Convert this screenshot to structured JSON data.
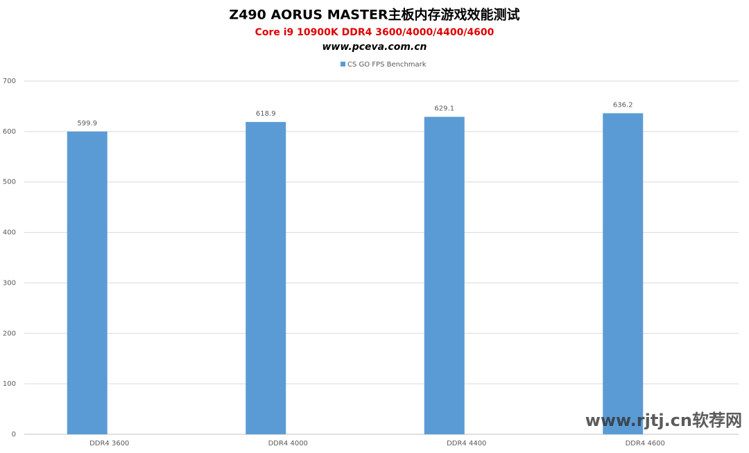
{
  "chart_data": {
    "type": "bar",
    "title": "Z490 AORUS MASTER主板内存游戏效能测试",
    "subtitle": "Core i9 10900K DDR4 3600/4000/4400/4600",
    "source": "www.pceva.com.cn",
    "categories": [
      "DDR4 3600",
      "DDR4 4000",
      "DDR4 4400",
      "DDR4 4600"
    ],
    "series": [
      {
        "name": "CS GO FPS Benchmark",
        "color": "#5b9bd5",
        "values": [
          599.9,
          618.9,
          629.1,
          636.2
        ]
      }
    ],
    "ylim": [
      0,
      700
    ],
    "yticks": [
      0,
      100,
      200,
      300,
      400,
      500,
      600,
      700
    ],
    "grid": true,
    "legend": "top",
    "watermark": "www.rjtj.cn软荐网"
  }
}
